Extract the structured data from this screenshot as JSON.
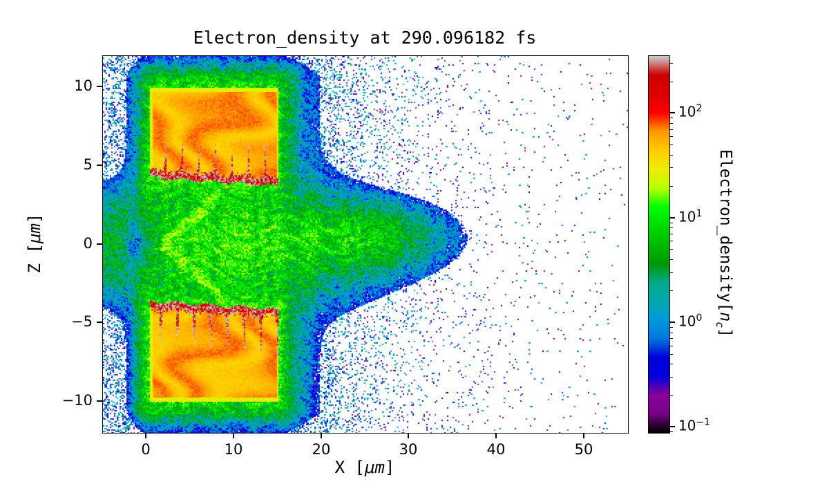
{
  "chart_data": {
    "type": "heatmap",
    "title": "Electron_density at 290.096182 fs",
    "xlabel": {
      "pre": "X [",
      "unit": "μm",
      "post": "]"
    },
    "ylabel": {
      "pre": "Z [",
      "unit": "μm",
      "post": "]"
    },
    "xlim": [
      -5,
      55
    ],
    "ylim": [
      -12,
      12
    ],
    "grid": false,
    "xticks": [
      {
        "value": 0,
        "label": "0"
      },
      {
        "value": 10,
        "label": "10"
      },
      {
        "value": 20,
        "label": "20"
      },
      {
        "value": 30,
        "label": "30"
      },
      {
        "value": 40,
        "label": "40"
      },
      {
        "value": 50,
        "label": "50"
      }
    ],
    "yticks": [
      {
        "value": -10,
        "label": "−10"
      },
      {
        "value": -5,
        "label": "−5"
      },
      {
        "value": 0,
        "label": "0"
      },
      {
        "value": 5,
        "label": "5"
      },
      {
        "value": 10,
        "label": "10"
      }
    ],
    "colorbar": {
      "label": {
        "pre": "Electron_density[",
        "var": "n",
        "sub": "c",
        "post": "]"
      },
      "scale": "log",
      "clim": [
        0.089,
        355
      ],
      "colormap": "nipy_spectral",
      "ticks": [
        {
          "value": 100,
          "mantissa": "10",
          "exp": "2"
        },
        {
          "value": 10,
          "mantissa": "10",
          "exp": "1"
        },
        {
          "value": 1,
          "mantissa": "10",
          "exp": "0"
        },
        {
          "value": 0.1,
          "mantissa": "10",
          "exp": "−1"
        }
      ],
      "stops": [
        {
          "p": 0.0,
          "c": [
            0,
            0,
            0
          ]
        },
        {
          "p": 0.05,
          "c": [
            119,
            0,
            136
          ]
        },
        {
          "p": 0.1,
          "c": [
            136,
            0,
            153
          ]
        },
        {
          "p": 0.15,
          "c": [
            0,
            0,
            221
          ]
        },
        {
          "p": 0.2,
          "c": [
            0,
            0,
            221
          ]
        },
        {
          "p": 0.25,
          "c": [
            0,
            119,
            221
          ]
        },
        {
          "p": 0.3,
          "c": [
            0,
            153,
            221
          ]
        },
        {
          "p": 0.35,
          "c": [
            0,
            170,
            170
          ]
        },
        {
          "p": 0.4,
          "c": [
            0,
            170,
            136
          ]
        },
        {
          "p": 0.45,
          "c": [
            0,
            153,
            0
          ]
        },
        {
          "p": 0.5,
          "c": [
            0,
            187,
            0
          ]
        },
        {
          "p": 0.55,
          "c": [
            0,
            221,
            0
          ]
        },
        {
          "p": 0.6,
          "c": [
            0,
            255,
            0
          ]
        },
        {
          "p": 0.65,
          "c": [
            187,
            255,
            0
          ]
        },
        {
          "p": 0.7,
          "c": [
            238,
            238,
            0
          ]
        },
        {
          "p": 0.75,
          "c": [
            255,
            204,
            0
          ]
        },
        {
          "p": 0.8,
          "c": [
            255,
            153,
            0
          ]
        },
        {
          "p": 0.85,
          "c": [
            255,
            0,
            0
          ]
        },
        {
          "p": 0.9,
          "c": [
            221,
            0,
            0
          ]
        },
        {
          "p": 0.95,
          "c": [
            204,
            0,
            0
          ]
        },
        {
          "p": 1.0,
          "c": [
            204,
            204,
            204
          ]
        }
      ]
    },
    "features": {
      "upper_target": {
        "x": [
          0.35,
          15.1
        ],
        "z": [
          4.0,
          10.0
        ],
        "body_density_nc": 60,
        "edge_density_nc": 26,
        "hot_layer": {
          "side": "lower",
          "z_at_x0": 4.25,
          "slope": -0.035,
          "thickness": 0.5,
          "density_nc": 260,
          "tendril_reach": 2.0
        }
      },
      "lower_target": {
        "x": [
          0.35,
          15.1
        ],
        "z": [
          -10.0,
          -4.0
        ],
        "body_density_nc": 60,
        "edge_density_nc": 26,
        "hot_layer": {
          "side": "upper",
          "z_at_x0": -3.6,
          "slope": -0.035,
          "thickness": 0.5,
          "density_nc": 260,
          "tendril_reach": 2.6
        }
      },
      "gap_plasma": {
        "peak_nc": 9,
        "x_center": 9,
        "x_sigma2": 190,
        "z_sigma2": 8,
        "tongue": {
          "peak_nc": 5,
          "x_center": 24,
          "x_sigma": 7.5,
          "z_center": 0.5,
          "z_sigma2": 2.6
        },
        "wedge_notch": {
          "peak_nc": 5,
          "x_center": -0.8
        }
      },
      "coat": {
        "near_peak_nc": 7,
        "near_scale_um": 0.9,
        "far_peak_nc": 2.2,
        "far_scale_um": 2.8
      },
      "chevron": {
        "x": [
          1.5,
          8.5
        ],
        "slope": 0.5,
        "peak_nc": 9
      },
      "halo": {
        "base_probability": 0.4,
        "decay_start_x": 16.5,
        "decay_scale_um": 6.0,
        "sparse_probability": 0.045,
        "sparse_scale_um": 22,
        "dot_density_range_nc": [
          0.12,
          2.0
        ]
      }
    }
  }
}
